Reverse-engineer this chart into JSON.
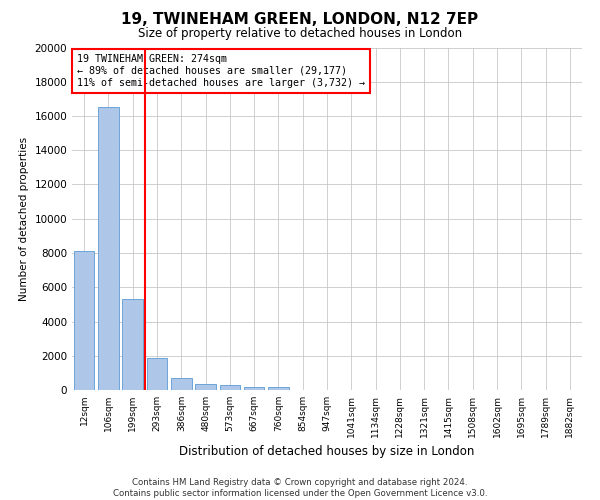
{
  "title": "19, TWINEHAM GREEN, LONDON, N12 7EP",
  "subtitle": "Size of property relative to detached houses in London",
  "xlabel": "Distribution of detached houses by size in London",
  "ylabel": "Number of detached properties",
  "categories": [
    "12sqm",
    "106sqm",
    "199sqm",
    "293sqm",
    "386sqm",
    "480sqm",
    "573sqm",
    "667sqm",
    "760sqm",
    "854sqm",
    "947sqm",
    "1041sqm",
    "1134sqm",
    "1228sqm",
    "1321sqm",
    "1415sqm",
    "1508sqm",
    "1602sqm",
    "1695sqm",
    "1789sqm",
    "1882sqm"
  ],
  "values": [
    8100,
    16500,
    5300,
    1850,
    680,
    360,
    290,
    200,
    170,
    0,
    0,
    0,
    0,
    0,
    0,
    0,
    0,
    0,
    0,
    0,
    0
  ],
  "bar_color": "#aec6e8",
  "bar_edge_color": "#5b9bd5",
  "vline_x_index": 2,
  "vline_color": "red",
  "annotation_text": "19 TWINEHAM GREEN: 274sqm\n← 89% of detached houses are smaller (29,177)\n11% of semi-detached houses are larger (3,732) →",
  "annotation_box_color": "white",
  "annotation_box_edge": "red",
  "ylim": [
    0,
    20000
  ],
  "yticks": [
    0,
    2000,
    4000,
    6000,
    8000,
    10000,
    12000,
    14000,
    16000,
    18000,
    20000
  ],
  "grid_color": "#c8c8c8",
  "background_color": "white",
  "footer_line1": "Contains HM Land Registry data © Crown copyright and database right 2024.",
  "footer_line2": "Contains public sector information licensed under the Open Government Licence v3.0."
}
